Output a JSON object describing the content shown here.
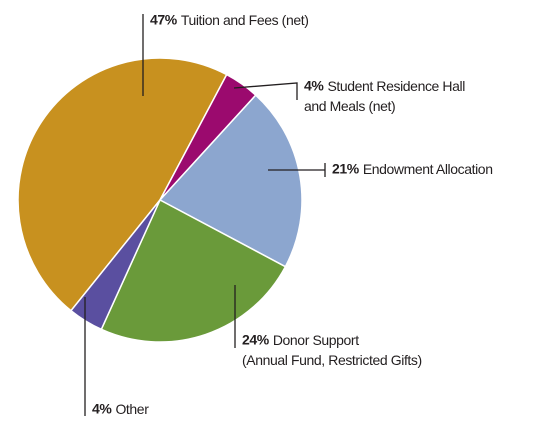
{
  "chart_data": {
    "type": "pie",
    "categories": [
      "Tuition and Fees (net)",
      "Student Residence Hall and Meals (net)",
      "Endowment Allocation",
      "Donor Support (Annual Fund, Restricted Gifts)",
      "Other"
    ],
    "values": [
      47,
      4,
      21,
      24,
      4
    ],
    "value_labels": [
      "47%",
      "4%",
      "21%",
      "24%",
      "4%"
    ],
    "colors": [
      "#c8911f",
      "#9b0a6e",
      "#8ca6cf",
      "#6a9a3a",
      "#5a4fa0"
    ]
  }
}
